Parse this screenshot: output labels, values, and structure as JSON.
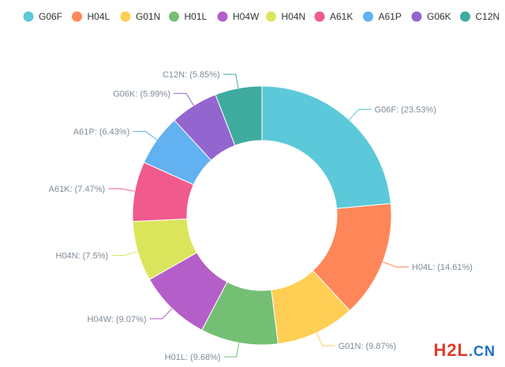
{
  "chart_data": {
    "type": "pie",
    "variant": "donut",
    "legend_position": "top",
    "slices": [
      {
        "name": "G06F",
        "percent": 23.53,
        "label": "G06F: (23.53%)",
        "color": "#5bc9d9"
      },
      {
        "name": "H04L",
        "percent": 14.61,
        "label": "H04L: (14.61%)",
        "color": "#ff8659"
      },
      {
        "name": "G01N",
        "percent": 9.87,
        "label": "G01N: (9.87%)",
        "color": "#ffce54"
      },
      {
        "name": "H01L",
        "percent": 9.68,
        "label": "H01L: (9.68%)",
        "color": "#74bf74"
      },
      {
        "name": "H04W",
        "percent": 9.07,
        "label": "H04W: (9.07%)",
        "color": "#b45ec9"
      },
      {
        "name": "H04N",
        "percent": 7.5,
        "label": "H04N: (7.5%)",
        "color": "#dbe55c"
      },
      {
        "name": "A61K",
        "percent": 7.47,
        "label": "A61K: (7.47%)",
        "color": "#f05a8c"
      },
      {
        "name": "A61P",
        "percent": 6.43,
        "label": "A61P: (6.43%)",
        "color": "#62b1f0"
      },
      {
        "name": "G06K",
        "percent": 5.99,
        "label": "G06K: (5.99%)",
        "color": "#9365cf"
      },
      {
        "name": "C12N",
        "percent": 5.85,
        "label": "C12N: (5.85%)",
        "color": "#3fab9f"
      }
    ]
  },
  "watermark": {
    "part1": "H2L",
    "part2": ".CN"
  }
}
